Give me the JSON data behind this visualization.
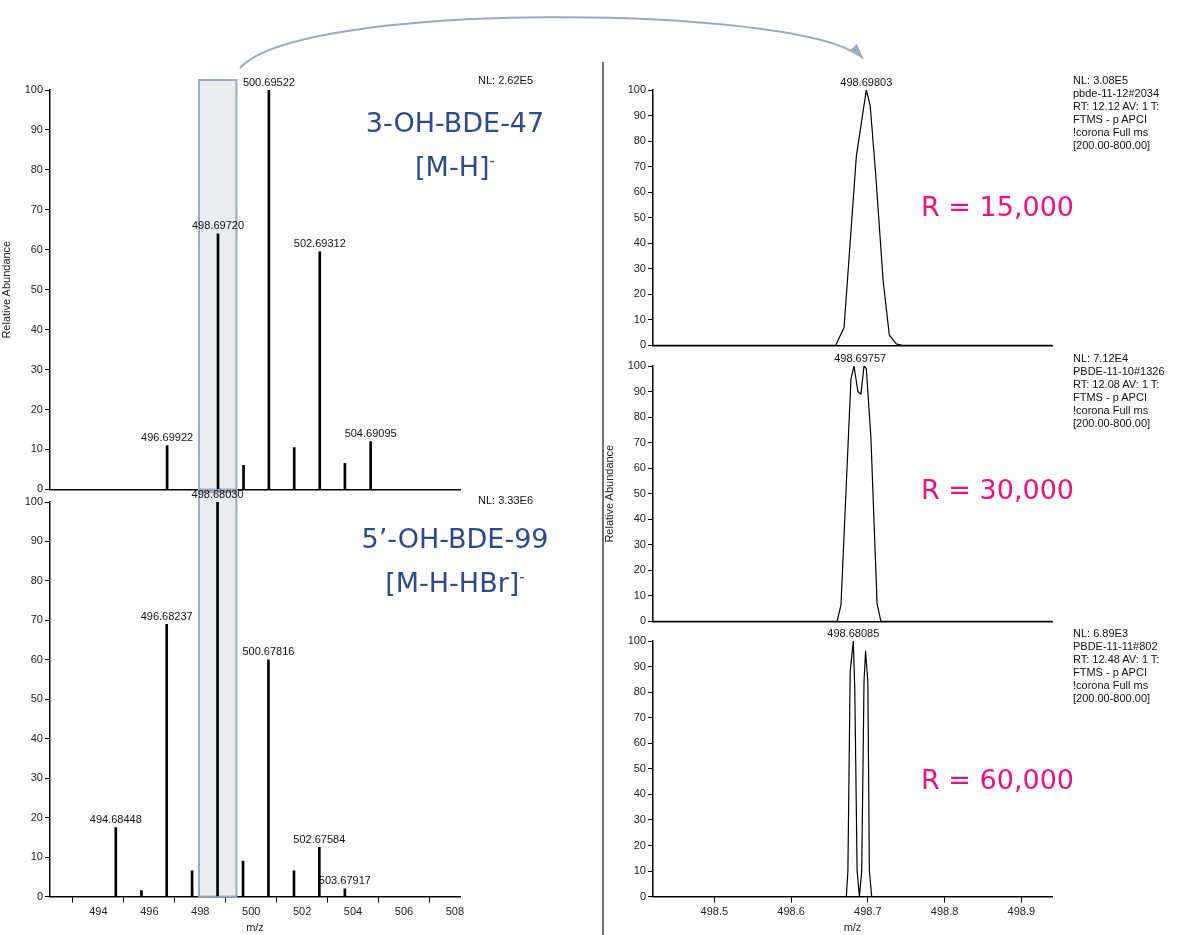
{
  "chart_data": [
    {
      "type": "bar",
      "ylabel": "Relative Abundance",
      "color": "#000000",
      "x": [
        496.69922,
        498.6972,
        499.7,
        500.69522,
        501.69,
        502.69312,
        503.68,
        504.69095
      ],
      "values": [
        11,
        64,
        6,
        100,
        10.5,
        59.5,
        6.5,
        12
      ],
      "xlim": [
        492.1,
        508.2
      ],
      "xticks": [
        494,
        496,
        498,
        500,
        502,
        504,
        506,
        508
      ],
      "ylim": [
        0,
        100
      ],
      "yticks": [
        0,
        10,
        20,
        30,
        40,
        50,
        60,
        70,
        80,
        90,
        100
      ],
      "tick_labels": "y",
      "bands": [
        {
          "axis": "x",
          "from": 497.95,
          "to": 499.42,
          "color": "#e9edf2"
        }
      ],
      "annotations": [
        "NL: 2.62E5",
        "3-OH-BDE-47",
        "[M-H]$^{-}$",
        {
          "text": "496.69922",
          "x": 496.69922,
          "y": 11
        },
        {
          "text": "498.69720",
          "x": 498.6972,
          "y": 64
        },
        {
          "text": "500.69522",
          "x": 500.69522,
          "y": 100
        },
        {
          "text": "502.69312",
          "x": 502.69312,
          "y": 59.5
        },
        {
          "text": "504.69095",
          "x": 504.69095,
          "y": 12
        }
      ]
    },
    {
      "type": "bar",
      "xlabel": "m/z",
      "color": "#000000",
      "x": [
        494.68448,
        495.69,
        496.68237,
        497.68,
        498.6803,
        499.68,
        500.67816,
        501.68,
        502.67584,
        503.67917
      ],
      "values": [
        17.5,
        1.5,
        69,
        6.5,
        100,
        9,
        60,
        6.5,
        12.5,
        2
      ],
      "xlim": [
        492.1,
        508.2
      ],
      "xticks": [
        494,
        496,
        498,
        500,
        502,
        504,
        506,
        508
      ],
      "ylim": [
        0,
        100
      ],
      "yticks": [
        0,
        10,
        20,
        30,
        40,
        50,
        60,
        70,
        80,
        90,
        100
      ],
      "bands": [
        {
          "axis": "x",
          "from": 497.95,
          "to": 499.42,
          "color": "#e9edf2"
        }
      ],
      "annotations": [
        "NL: 3.33E6",
        "5’-OH-BDE-99",
        "[M-H-HBr]$^{-}$",
        {
          "text": "494.68448",
          "x": 494.68448,
          "y": 17.5
        },
        {
          "text": "496.68237",
          "x": 496.68237,
          "y": 69
        },
        {
          "text": "498.68030",
          "x": 498.6803,
          "y": 100
        },
        {
          "text": "500.67816",
          "x": 500.67816,
          "y": 60
        },
        {
          "text": "502.67584",
          "x": 502.67584,
          "y": 12.5
        },
        {
          "text": "503.67917",
          "x": 503.67917,
          "y": 2
        }
      ]
    },
    {
      "type": "line",
      "color": "#000000",
      "marker": "none",
      "x": [
        498.42,
        498.658,
        498.669,
        498.685,
        498.698,
        498.703,
        498.71,
        498.72,
        498.728,
        498.737,
        498.745,
        498.94
      ],
      "values": [
        0,
        0,
        7,
        74,
        100,
        94,
        68,
        25,
        4,
        0.6,
        0,
        0
      ],
      "xlim": [
        498.42,
        498.94
      ],
      "xticks": [
        498.5,
        498.6,
        498.7,
        498.8,
        498.9
      ],
      "ylim": [
        0,
        100
      ],
      "yticks": [
        0,
        10,
        20,
        30,
        40,
        50,
        60,
        70,
        80,
        90,
        100
      ],
      "tick_labels": "y",
      "annotations": [
        "NL: 3.08E5",
        "pbde-11-12#2034",
        "RT: 12.12  AV: 1 T:",
        "FTMS - p APCI",
        "!corona Full ms",
        "[200.00-800.00]",
        "R = 15,000",
        {
          "text": "498.69803",
          "x": 498.698,
          "y": 100
        }
      ]
    },
    {
      "type": "line",
      "ylabel": "Relative Abundance",
      "color": "#000000",
      "marker": "none",
      "x": [
        498.42,
        498.66,
        498.665,
        498.678,
        498.682,
        498.687,
        498.691,
        498.695,
        498.698,
        498.704,
        498.712,
        498.717,
        498.94
      ],
      "values": [
        0,
        0,
        6.5,
        95,
        100,
        90,
        89,
        100,
        99,
        72,
        7,
        0,
        0
      ],
      "xlim": [
        498.42,
        498.94
      ],
      "xticks": [
        498.5,
        498.6,
        498.7,
        498.8,
        498.9
      ],
      "ylim": [
        0,
        100
      ],
      "yticks": [
        0,
        10,
        20,
        30,
        40,
        50,
        60,
        70,
        80,
        90,
        100
      ],
      "tick_labels": "y",
      "annotations": [
        "NL: 7.12E4",
        "PBDE-11-10#1326",
        "RT: 12.08  AV: 1 T:",
        "FTMS - p APCI",
        "!corona Full ms",
        "[200.00-800.00]",
        "R = 30,000",
        {
          "text": "498.69757",
          "x": 498.69,
          "y": 100
        }
      ]
    },
    {
      "type": "line",
      "xlabel": "m/z",
      "color": "#000000",
      "marker": "none",
      "x": [
        498.42,
        498.672,
        498.674,
        498.677,
        498.681,
        498.683,
        498.686,
        498.689,
        498.692,
        498.695,
        498.697,
        498.7,
        498.702,
        498.705,
        498.94
      ],
      "values": [
        0,
        0,
        10,
        88,
        100,
        81,
        10,
        0,
        10,
        84,
        96,
        84,
        10,
        0,
        0
      ],
      "xlim": [
        498.42,
        498.94
      ],
      "xticks": [
        498.5,
        498.6,
        498.7,
        498.8,
        498.9
      ],
      "ylim": [
        0,
        100
      ],
      "yticks": [
        0,
        10,
        20,
        30,
        40,
        50,
        60,
        70,
        80,
        90,
        100
      ],
      "annotations": [
        "NL: 6.89E3",
        "PBDE-11-11#802",
        "RT: 12.48  AV: 1 T:",
        "FTMS - p APCI",
        "!corona Full ms",
        "[200.00-800.00]",
        "R = 60,000",
        {
          "text": "498.68085",
          "x": 498.681,
          "y": 100
        }
      ]
    }
  ]
}
